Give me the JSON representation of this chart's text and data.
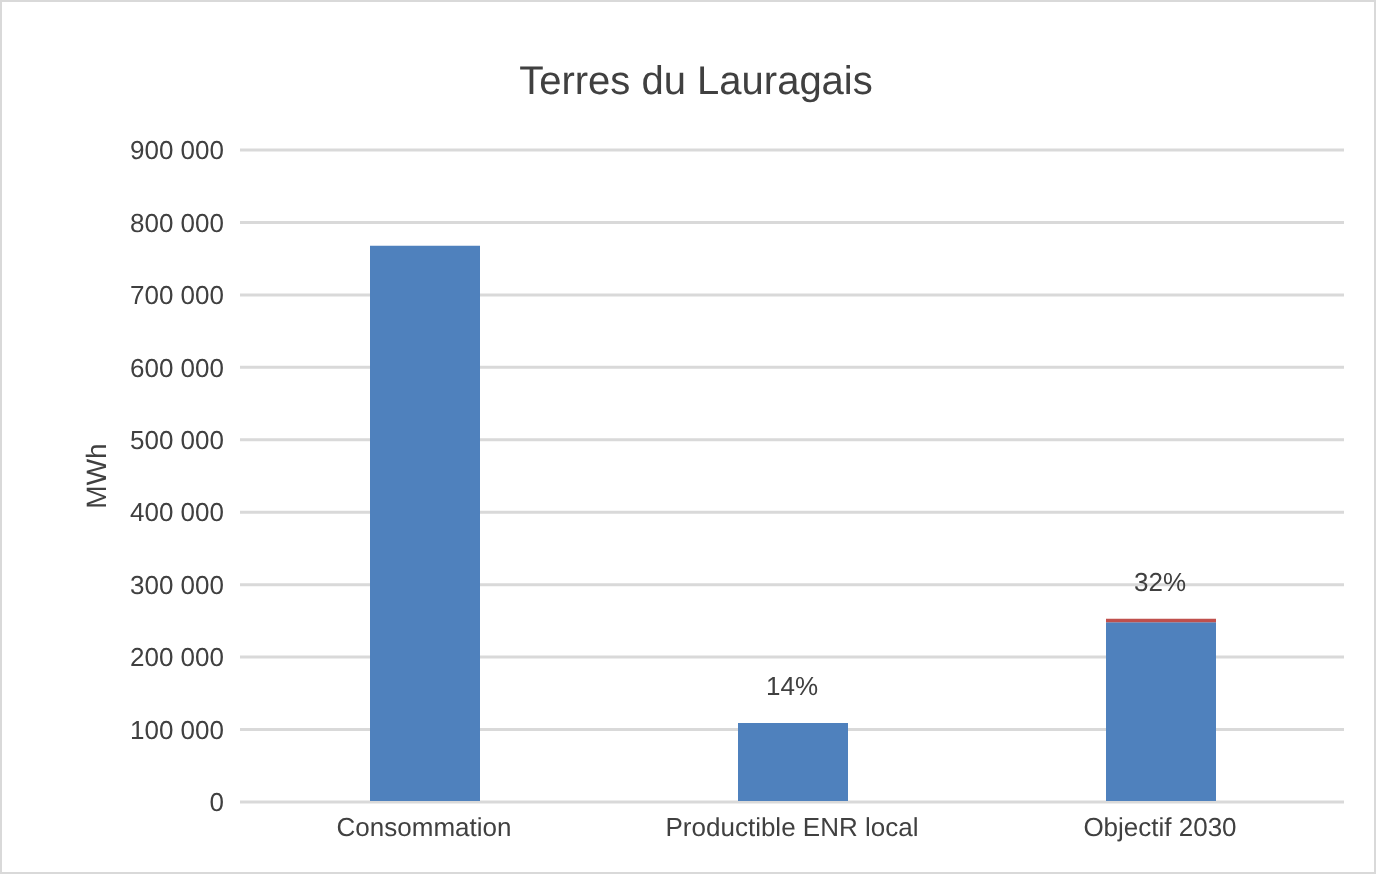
{
  "chart_data": {
    "type": "bar",
    "title": "Terres du Lauragais",
    "ylabel": "MWh",
    "stacked": true,
    "categories": [
      "Consommation",
      "Productible ENR local",
      "Objectif 2030"
    ],
    "series": [
      {
        "color": "#4f81bd",
        "values": [
          768000,
          109000,
          248000
        ]
      },
      {
        "color": "#c0504d",
        "values": [
          null,
          null,
          5000
        ]
      }
    ],
    "annotations": [
      {
        "text": "14%",
        "x": "Productible ENR local",
        "y": 109000
      },
      {
        "text": "32%",
        "x": "Objectif 2030",
        "y": 253000
      }
    ],
    "ylim": [
      0,
      900000
    ],
    "yticks": [
      0,
      100000,
      200000,
      300000,
      400000,
      500000,
      600000,
      700000,
      800000,
      900000
    ],
    "grid": "y",
    "legend": false
  }
}
